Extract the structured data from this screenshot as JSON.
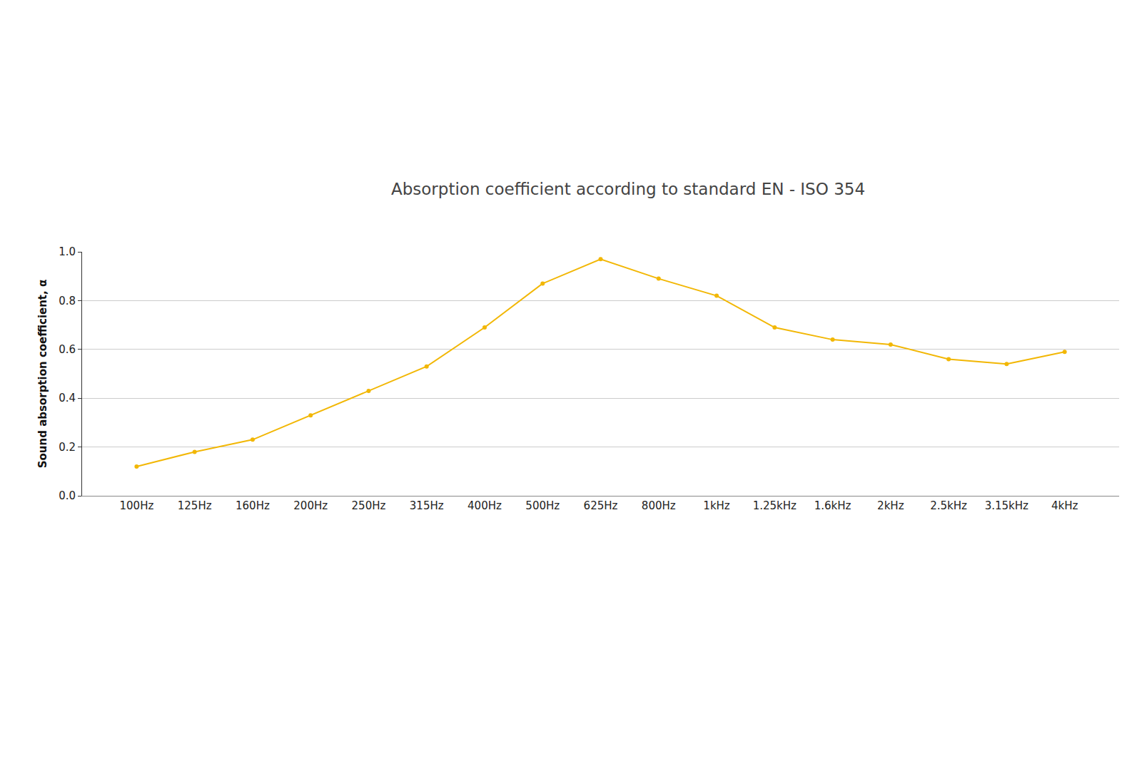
{
  "chart_data": {
    "type": "line",
    "title": "Absorption coefficient according to standard EN - ISO 354",
    "y_label": "Sound absorption coefficient, α",
    "categories": [
      "100Hz",
      "125Hz",
      "160Hz",
      "200Hz",
      "250Hz",
      "315Hz",
      "400Hz",
      "500Hz",
      "625Hz",
      "800Hz",
      "1kHz",
      "1.25kHz",
      "1.6kHz",
      "2kHz",
      "2.5kHz",
      "3.15kHz",
      "4kHz"
    ],
    "values": [
      0.12,
      0.18,
      0.23,
      0.33,
      0.43,
      0.53,
      0.69,
      0.87,
      0.97,
      0.89,
      0.82,
      0.69,
      0.64,
      0.62,
      0.56,
      0.54,
      0.59
    ],
    "color": "#f2b705",
    "marker": "circle",
    "ylim": [
      0,
      1
    ],
    "yticks": [
      {
        "value": 0,
        "label": "0.0"
      },
      0.2,
      0.4,
      0.6,
      0.8,
      {
        "value": 1,
        "label": "1.0"
      }
    ],
    "grid": true
  }
}
